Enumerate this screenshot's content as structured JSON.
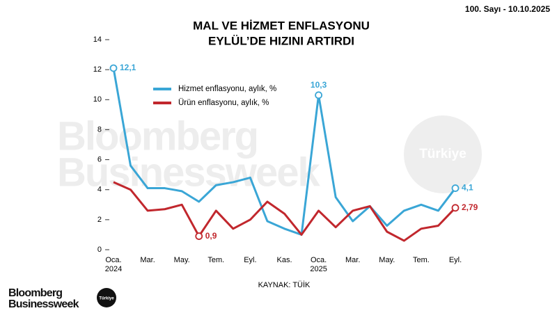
{
  "issue": "100. Sayı - 10.10.2025",
  "chart_data": {
    "type": "line",
    "title": [
      "MAL VE HİZMET ENFLASYONU",
      "EYLÜL’DE HIZINI ARTIRDI"
    ],
    "categories": [
      "Oca.",
      null,
      "Mar.",
      null,
      "May.",
      null,
      "Tem.",
      null,
      "Eyl.",
      null,
      "Kas.",
      null,
      "Oca.",
      null,
      "Mar.",
      null,
      "May.",
      null,
      "Tem.",
      null,
      "Eyl."
    ],
    "years": [
      "2024",
      null,
      null,
      null,
      null,
      null,
      null,
      null,
      null,
      null,
      null,
      null,
      "2025",
      null,
      null,
      null,
      null,
      null,
      null,
      null,
      null
    ],
    "series": [
      {
        "name": "Hizmet enflasyonu, aylık, %",
        "color": "#3aa6d6",
        "values": [
          12.1,
          5.6,
          4.1,
          4.1,
          3.9,
          3.2,
          4.3,
          4.5,
          4.8,
          1.9,
          1.4,
          1.0,
          10.3,
          3.5,
          1.9,
          2.9,
          1.6,
          2.6,
          3.0,
          2.6,
          4.1
        ],
        "value_labels": [
          "12,1",
          null,
          null,
          null,
          null,
          null,
          null,
          null,
          null,
          null,
          null,
          null,
          "10,3",
          null,
          null,
          null,
          null,
          null,
          null,
          null,
          "4,1"
        ]
      },
      {
        "name": "Ürün enflasyonu, aylık, %",
        "color": "#c1272d",
        "values": [
          4.5,
          4.0,
          2.6,
          2.7,
          3.0,
          0.9,
          2.6,
          1.4,
          2.0,
          3.2,
          2.4,
          1.0,
          2.6,
          1.5,
          2.6,
          2.9,
          1.2,
          0.6,
          1.4,
          1.6,
          2.79
        ],
        "value_labels": [
          null,
          null,
          null,
          null,
          null,
          "0,9",
          null,
          null,
          null,
          null,
          null,
          null,
          null,
          null,
          null,
          null,
          null,
          null,
          null,
          null,
          "2,79"
        ]
      }
    ],
    "ylim": [
      0,
      14
    ],
    "yticks": [
      0,
      2,
      4,
      6,
      8,
      10,
      12,
      14
    ],
    "grid": false,
    "source": "KAYNAK: TÜİK"
  },
  "watermark": {
    "line1": "Bloomberg",
    "line2": "Businessweek",
    "badge": "Türkiye"
  },
  "logo": {
    "line1": "Bloomberg",
    "line2": "Businessweek",
    "badge": "Türkiye"
  }
}
